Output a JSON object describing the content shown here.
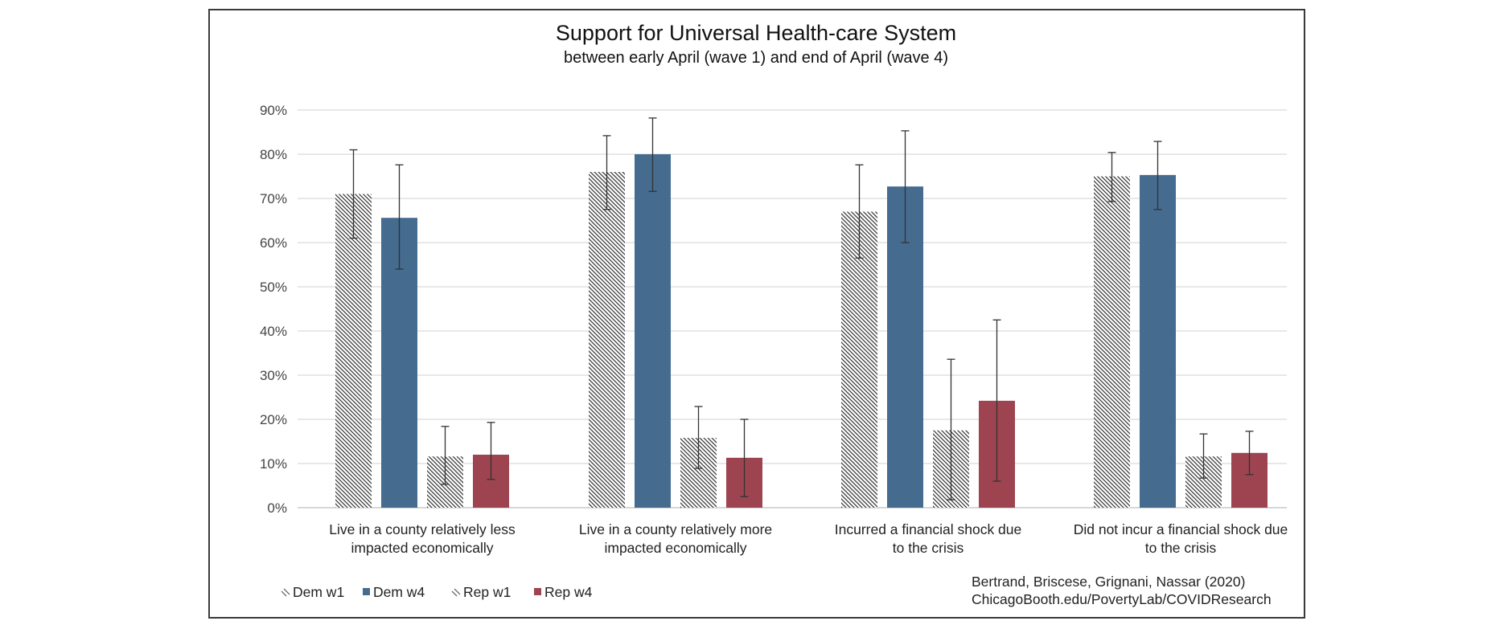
{
  "chart_data": {
    "type": "bar",
    "title": "Support for Universal Health-care System",
    "subtitle": "between early April (wave 1) and end of April (wave 4)",
    "xlabel": "",
    "ylabel": "",
    "ylim": [
      0,
      90
    ],
    "y_ticks": [
      0,
      10,
      20,
      30,
      40,
      50,
      60,
      70,
      80,
      90
    ],
    "y_tick_labels": [
      "0%",
      "10%",
      "20%",
      "30%",
      "40%",
      "50%",
      "60%",
      "70%",
      "80%",
      "90%"
    ],
    "grid": true,
    "legend_position": "bottom-left",
    "categories": [
      [
        "Live in a county relatively less",
        "impacted economically"
      ],
      [
        "Live in a county relatively more",
        "impacted economically"
      ],
      [
        "Incurred a financial shock due",
        "to the crisis"
      ],
      [
        "Did not incur a financial shock due",
        "to the crisis"
      ]
    ],
    "series": [
      {
        "name": "Dem w1",
        "style": "hatched",
        "color": "#3a3a3a",
        "values": [
          71,
          76,
          67,
          75
        ],
        "error_low": [
          61,
          67.5,
          56.5,
          69.3
        ],
        "error_high": [
          81,
          84.2,
          77.6,
          80.4
        ]
      },
      {
        "name": "Dem w4",
        "style": "solid",
        "color": "#456b8f",
        "values": [
          65.6,
          80,
          72.7,
          75.3
        ],
        "error_low": [
          54,
          71.6,
          60,
          67.5
        ],
        "error_high": [
          77.6,
          88.2,
          85.3,
          82.9
        ]
      },
      {
        "name": "Rep w1",
        "style": "hatched",
        "color": "#3a3a3a",
        "values": [
          11.6,
          15.8,
          17.5,
          11.6
        ],
        "error_low": [
          5.3,
          8.9,
          1.8,
          6.7
        ],
        "error_high": [
          18.4,
          22.9,
          33.6,
          16.7
        ]
      },
      {
        "name": "Rep w4",
        "style": "solid",
        "color": "#9e4450",
        "values": [
          12,
          11.3,
          24.2,
          12.4
        ],
        "error_low": [
          6.4,
          2.5,
          6,
          7.5
        ],
        "error_high": [
          19.3,
          20,
          42.5,
          17.3
        ]
      }
    ],
    "credit": [
      "Bertrand, Briscese, Grignani, Nassar (2020)",
      "ChicagoBooth.edu/PovertyLab/COVIDResearch"
    ]
  }
}
